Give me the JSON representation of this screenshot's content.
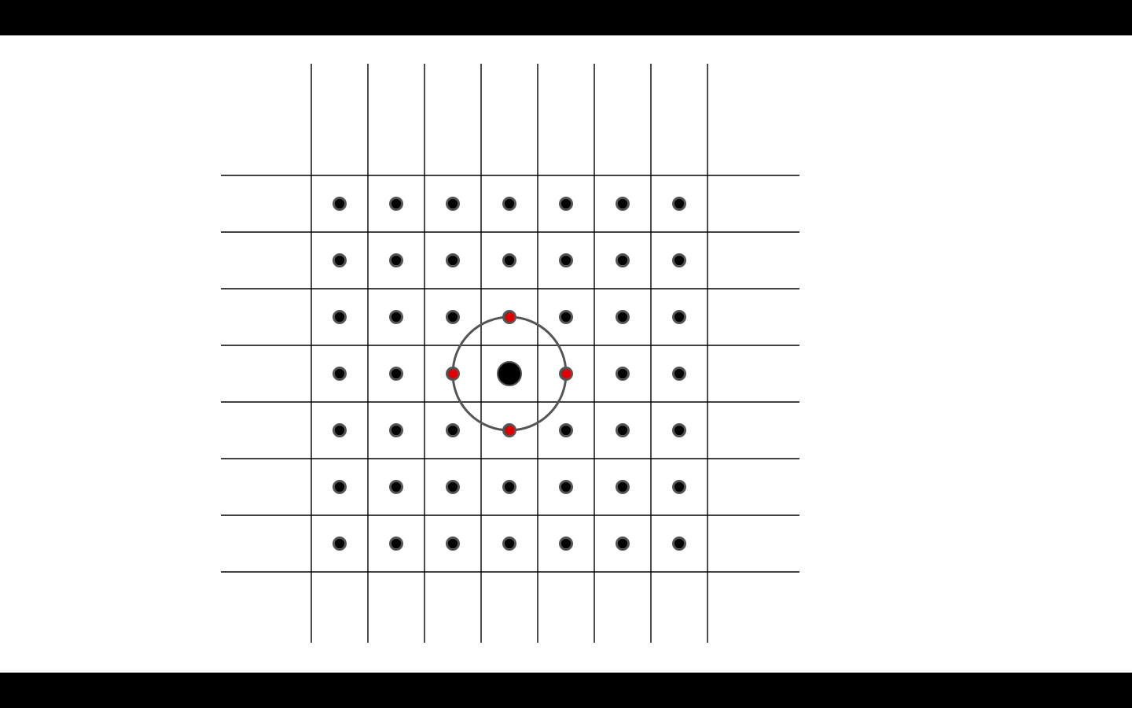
{
  "diagram": {
    "grid": {
      "columns": 7,
      "rows": 7,
      "line_color": "#000000"
    },
    "dot_style": {
      "fill": "#000000",
      "stroke": "#555555"
    },
    "highlight": {
      "center_cell": {
        "col": 3,
        "row": 3
      },
      "center_fill": "#000000",
      "ring_stroke": "#555555",
      "neighbor_fill": "#e00000",
      "neighbors": [
        {
          "col": 3,
          "row": 2
        },
        {
          "col": 2,
          "row": 3
        },
        {
          "col": 4,
          "row": 3
        },
        {
          "col": 3,
          "row": 4
        }
      ]
    }
  }
}
